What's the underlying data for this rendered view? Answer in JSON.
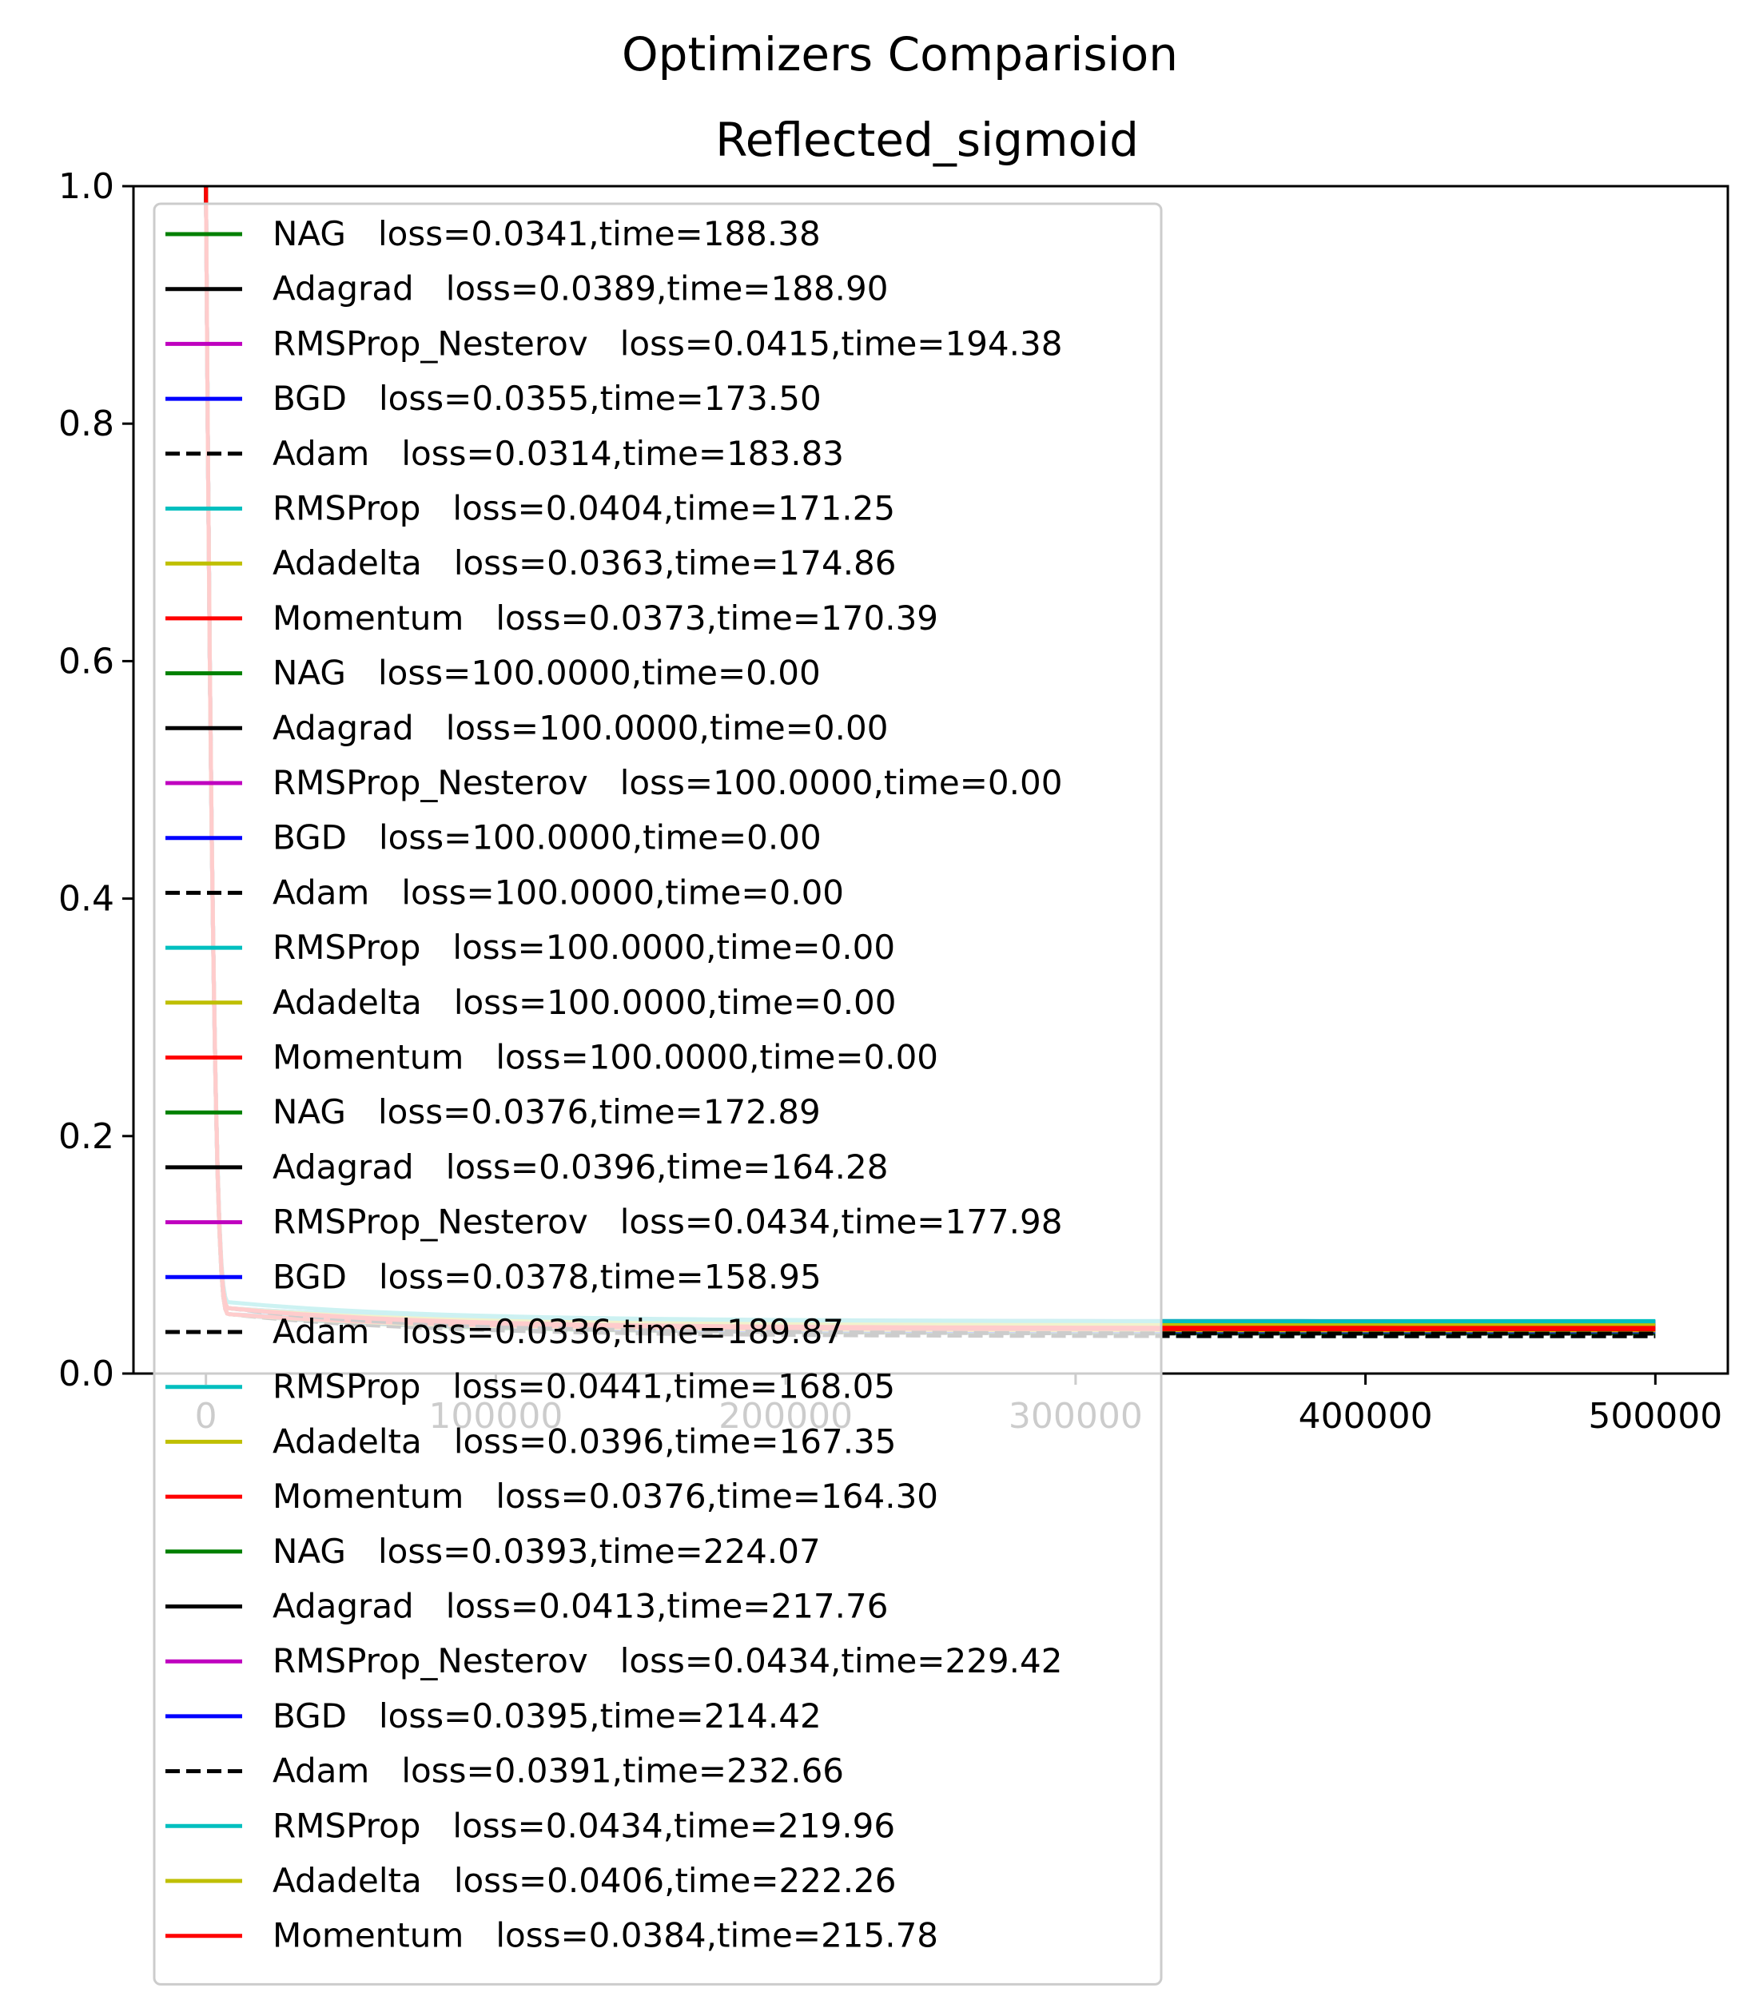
{
  "chart_data": {
    "type": "line",
    "title": "Optimizers Comparision",
    "subtitle": "Reflected_sigmoid",
    "xlabel": "",
    "ylabel": "",
    "xlim": [
      -25000,
      525000
    ],
    "ylim": [
      0.0,
      1.0
    ],
    "x_ticks": [
      {
        "value": 0,
        "label": "0"
      },
      {
        "value": 100000,
        "label": "100000"
      },
      {
        "value": 200000,
        "label": "200000"
      },
      {
        "value": 300000,
        "label": "300000"
      },
      {
        "value": 400000,
        "label": "400000"
      },
      {
        "value": 500000,
        "label": "500000"
      }
    ],
    "y_ticks": [
      {
        "value": 0.0,
        "label": "0.0"
      },
      {
        "value": 0.2,
        "label": "0.2"
      },
      {
        "value": 0.4,
        "label": "0.4"
      },
      {
        "value": 0.6,
        "label": "0.6"
      },
      {
        "value": 0.8,
        "label": "0.8"
      },
      {
        "value": 1.0,
        "label": "1.0"
      }
    ],
    "grid": false,
    "legend_position": "upper-left",
    "series": [
      {
        "name": "NAG   loss=0.0341,time=188.38",
        "color": "#008000",
        "dash": "solid",
        "curve": {
          "start_x": 0,
          "start_y": 1.0,
          "knee_x": 8000,
          "knee_y": 0.05,
          "end_x": 500000,
          "end_y": 0.0341
        }
      },
      {
        "name": "Adagrad   loss=0.0389,time=188.90",
        "color": "#000000",
        "dash": "solid",
        "curve": {
          "start_x": 0,
          "start_y": 1.0,
          "knee_x": 8000,
          "knee_y": 0.05,
          "end_x": 500000,
          "end_y": 0.0389
        }
      },
      {
        "name": "RMSProp_Nesterov   loss=0.0415,time=194.38",
        "color": "#bf00bf",
        "dash": "solid",
        "curve": {
          "start_x": 0,
          "start_y": 1.0,
          "knee_x": 8000,
          "knee_y": 0.05,
          "end_x": 500000,
          "end_y": 0.0415
        }
      },
      {
        "name": "BGD   loss=0.0355,time=173.50",
        "color": "#0000ff",
        "dash": "solid",
        "curve": {
          "start_x": 0,
          "start_y": 1.0,
          "knee_x": 8000,
          "knee_y": 0.05,
          "end_x": 500000,
          "end_y": 0.0355
        }
      },
      {
        "name": "Adam   loss=0.0314,time=183.83",
        "color": "#000000",
        "dash": "dashed",
        "curve": {
          "start_x": 0,
          "start_y": 1.0,
          "knee_x": 8000,
          "knee_y": 0.05,
          "end_x": 500000,
          "end_y": 0.0314
        }
      },
      {
        "name": "RMSProp   loss=0.0404,time=171.25",
        "color": "#00bfbf",
        "dash": "solid",
        "curve": {
          "start_x": 0,
          "start_y": 1.0,
          "knee_x": 8000,
          "knee_y": 0.05,
          "end_x": 500000,
          "end_y": 0.0404
        }
      },
      {
        "name": "Adadelta   loss=0.0363,time=174.86",
        "color": "#bfbf00",
        "dash": "solid",
        "curve": {
          "start_x": 0,
          "start_y": 1.0,
          "knee_x": 8000,
          "knee_y": 0.05,
          "end_x": 500000,
          "end_y": 0.0363
        }
      },
      {
        "name": "Momentum   loss=0.0373,time=170.39",
        "color": "#ff0000",
        "dash": "solid",
        "curve": {
          "start_x": 0,
          "start_y": 1.0,
          "knee_x": 8000,
          "knee_y": 0.05,
          "end_x": 500000,
          "end_y": 0.0373
        }
      },
      {
        "name": "NAG   loss=100.0000,time=0.00",
        "color": "#008000",
        "dash": "solid",
        "curve": null
      },
      {
        "name": "Adagrad   loss=100.0000,time=0.00",
        "color": "#000000",
        "dash": "solid",
        "curve": null
      },
      {
        "name": "RMSProp_Nesterov   loss=100.0000,time=0.00",
        "color": "#bf00bf",
        "dash": "solid",
        "curve": null
      },
      {
        "name": "BGD   loss=100.0000,time=0.00",
        "color": "#0000ff",
        "dash": "solid",
        "curve": null
      },
      {
        "name": "Adam   loss=100.0000,time=0.00",
        "color": "#000000",
        "dash": "dashed",
        "curve": null
      },
      {
        "name": "RMSProp   loss=100.0000,time=0.00",
        "color": "#00bfbf",
        "dash": "solid",
        "curve": null
      },
      {
        "name": "Adadelta   loss=100.0000,time=0.00",
        "color": "#bfbf00",
        "dash": "solid",
        "curve": null
      },
      {
        "name": "Momentum   loss=100.0000,time=0.00",
        "color": "#ff0000",
        "dash": "solid",
        "curve": null
      },
      {
        "name": "NAG   loss=0.0376,time=172.89",
        "color": "#008000",
        "dash": "solid",
        "curve": {
          "start_x": 0,
          "start_y": 1.0,
          "knee_x": 8000,
          "knee_y": 0.055,
          "end_x": 500000,
          "end_y": 0.0376
        }
      },
      {
        "name": "Adagrad   loss=0.0396,time=164.28",
        "color": "#000000",
        "dash": "solid",
        "curve": {
          "start_x": 0,
          "start_y": 1.0,
          "knee_x": 8000,
          "knee_y": 0.055,
          "end_x": 500000,
          "end_y": 0.0396
        }
      },
      {
        "name": "RMSProp_Nesterov   loss=0.0434,time=177.98",
        "color": "#bf00bf",
        "dash": "solid",
        "curve": {
          "start_x": 0,
          "start_y": 1.0,
          "knee_x": 8000,
          "knee_y": 0.055,
          "end_x": 500000,
          "end_y": 0.0434
        }
      },
      {
        "name": "BGD   loss=0.0378,time=158.95",
        "color": "#0000ff",
        "dash": "solid",
        "curve": {
          "start_x": 0,
          "start_y": 1.0,
          "knee_x": 8000,
          "knee_y": 0.055,
          "end_x": 500000,
          "end_y": 0.0378
        }
      },
      {
        "name": "Adam   loss=0.0336,time=189.87",
        "color": "#000000",
        "dash": "dashed",
        "curve": {
          "start_x": 0,
          "start_y": 1.0,
          "knee_x": 8000,
          "knee_y": 0.055,
          "end_x": 500000,
          "end_y": 0.0336
        }
      },
      {
        "name": "RMSProp   loss=0.0441,time=168.05",
        "color": "#00bfbf",
        "dash": "solid",
        "curve": {
          "start_x": 0,
          "start_y": 1.0,
          "knee_x": 8000,
          "knee_y": 0.06,
          "end_x": 500000,
          "end_y": 0.0441
        }
      },
      {
        "name": "Adadelta   loss=0.0396,time=167.35",
        "color": "#bfbf00",
        "dash": "solid",
        "curve": {
          "start_x": 0,
          "start_y": 1.0,
          "knee_x": 8000,
          "knee_y": 0.055,
          "end_x": 500000,
          "end_y": 0.0396
        }
      },
      {
        "name": "Momentum   loss=0.0376,time=164.30",
        "color": "#ff0000",
        "dash": "solid",
        "curve": {
          "start_x": 0,
          "start_y": 1.0,
          "knee_x": 8000,
          "knee_y": 0.055,
          "end_x": 500000,
          "end_y": 0.0376
        }
      },
      {
        "name": "NAG   loss=0.0393,time=224.07",
        "color": "#008000",
        "dash": "solid",
        "curve": {
          "start_x": 0,
          "start_y": 1.0,
          "knee_x": 8000,
          "knee_y": 0.055,
          "end_x": 500000,
          "end_y": 0.0393
        }
      },
      {
        "name": "Adagrad   loss=0.0413,time=217.76",
        "color": "#000000",
        "dash": "solid",
        "curve": {
          "start_x": 0,
          "start_y": 1.0,
          "knee_x": 8000,
          "knee_y": 0.055,
          "end_x": 500000,
          "end_y": 0.0413
        }
      },
      {
        "name": "RMSProp_Nesterov   loss=0.0434,time=229.42",
        "color": "#bf00bf",
        "dash": "solid",
        "curve": {
          "start_x": 0,
          "start_y": 1.0,
          "knee_x": 8000,
          "knee_y": 0.055,
          "end_x": 500000,
          "end_y": 0.0434
        }
      },
      {
        "name": "BGD   loss=0.0395,time=214.42",
        "color": "#0000ff",
        "dash": "solid",
        "curve": {
          "start_x": 0,
          "start_y": 1.0,
          "knee_x": 8000,
          "knee_y": 0.055,
          "end_x": 500000,
          "end_y": 0.0395
        }
      },
      {
        "name": "Adam   loss=0.0391,time=232.66",
        "color": "#000000",
        "dash": "dashed",
        "curve": {
          "start_x": 0,
          "start_y": 1.0,
          "knee_x": 8000,
          "knee_y": 0.055,
          "end_x": 500000,
          "end_y": 0.0391
        }
      },
      {
        "name": "RMSProp   loss=0.0434,time=219.96",
        "color": "#00bfbf",
        "dash": "solid",
        "curve": {
          "start_x": 0,
          "start_y": 1.0,
          "knee_x": 8000,
          "knee_y": 0.055,
          "end_x": 500000,
          "end_y": 0.0434
        }
      },
      {
        "name": "Adadelta   loss=0.0406,time=222.26",
        "color": "#bfbf00",
        "dash": "solid",
        "curve": {
          "start_x": 0,
          "start_y": 1.0,
          "knee_x": 8000,
          "knee_y": 0.055,
          "end_x": 500000,
          "end_y": 0.0406
        }
      },
      {
        "name": "Momentum   loss=0.0384,time=215.78",
        "color": "#ff0000",
        "dash": "solid",
        "curve": {
          "start_x": 0,
          "start_y": 1.0,
          "knee_x": 8000,
          "knee_y": 0.055,
          "end_x": 500000,
          "end_y": 0.0384
        }
      }
    ]
  }
}
